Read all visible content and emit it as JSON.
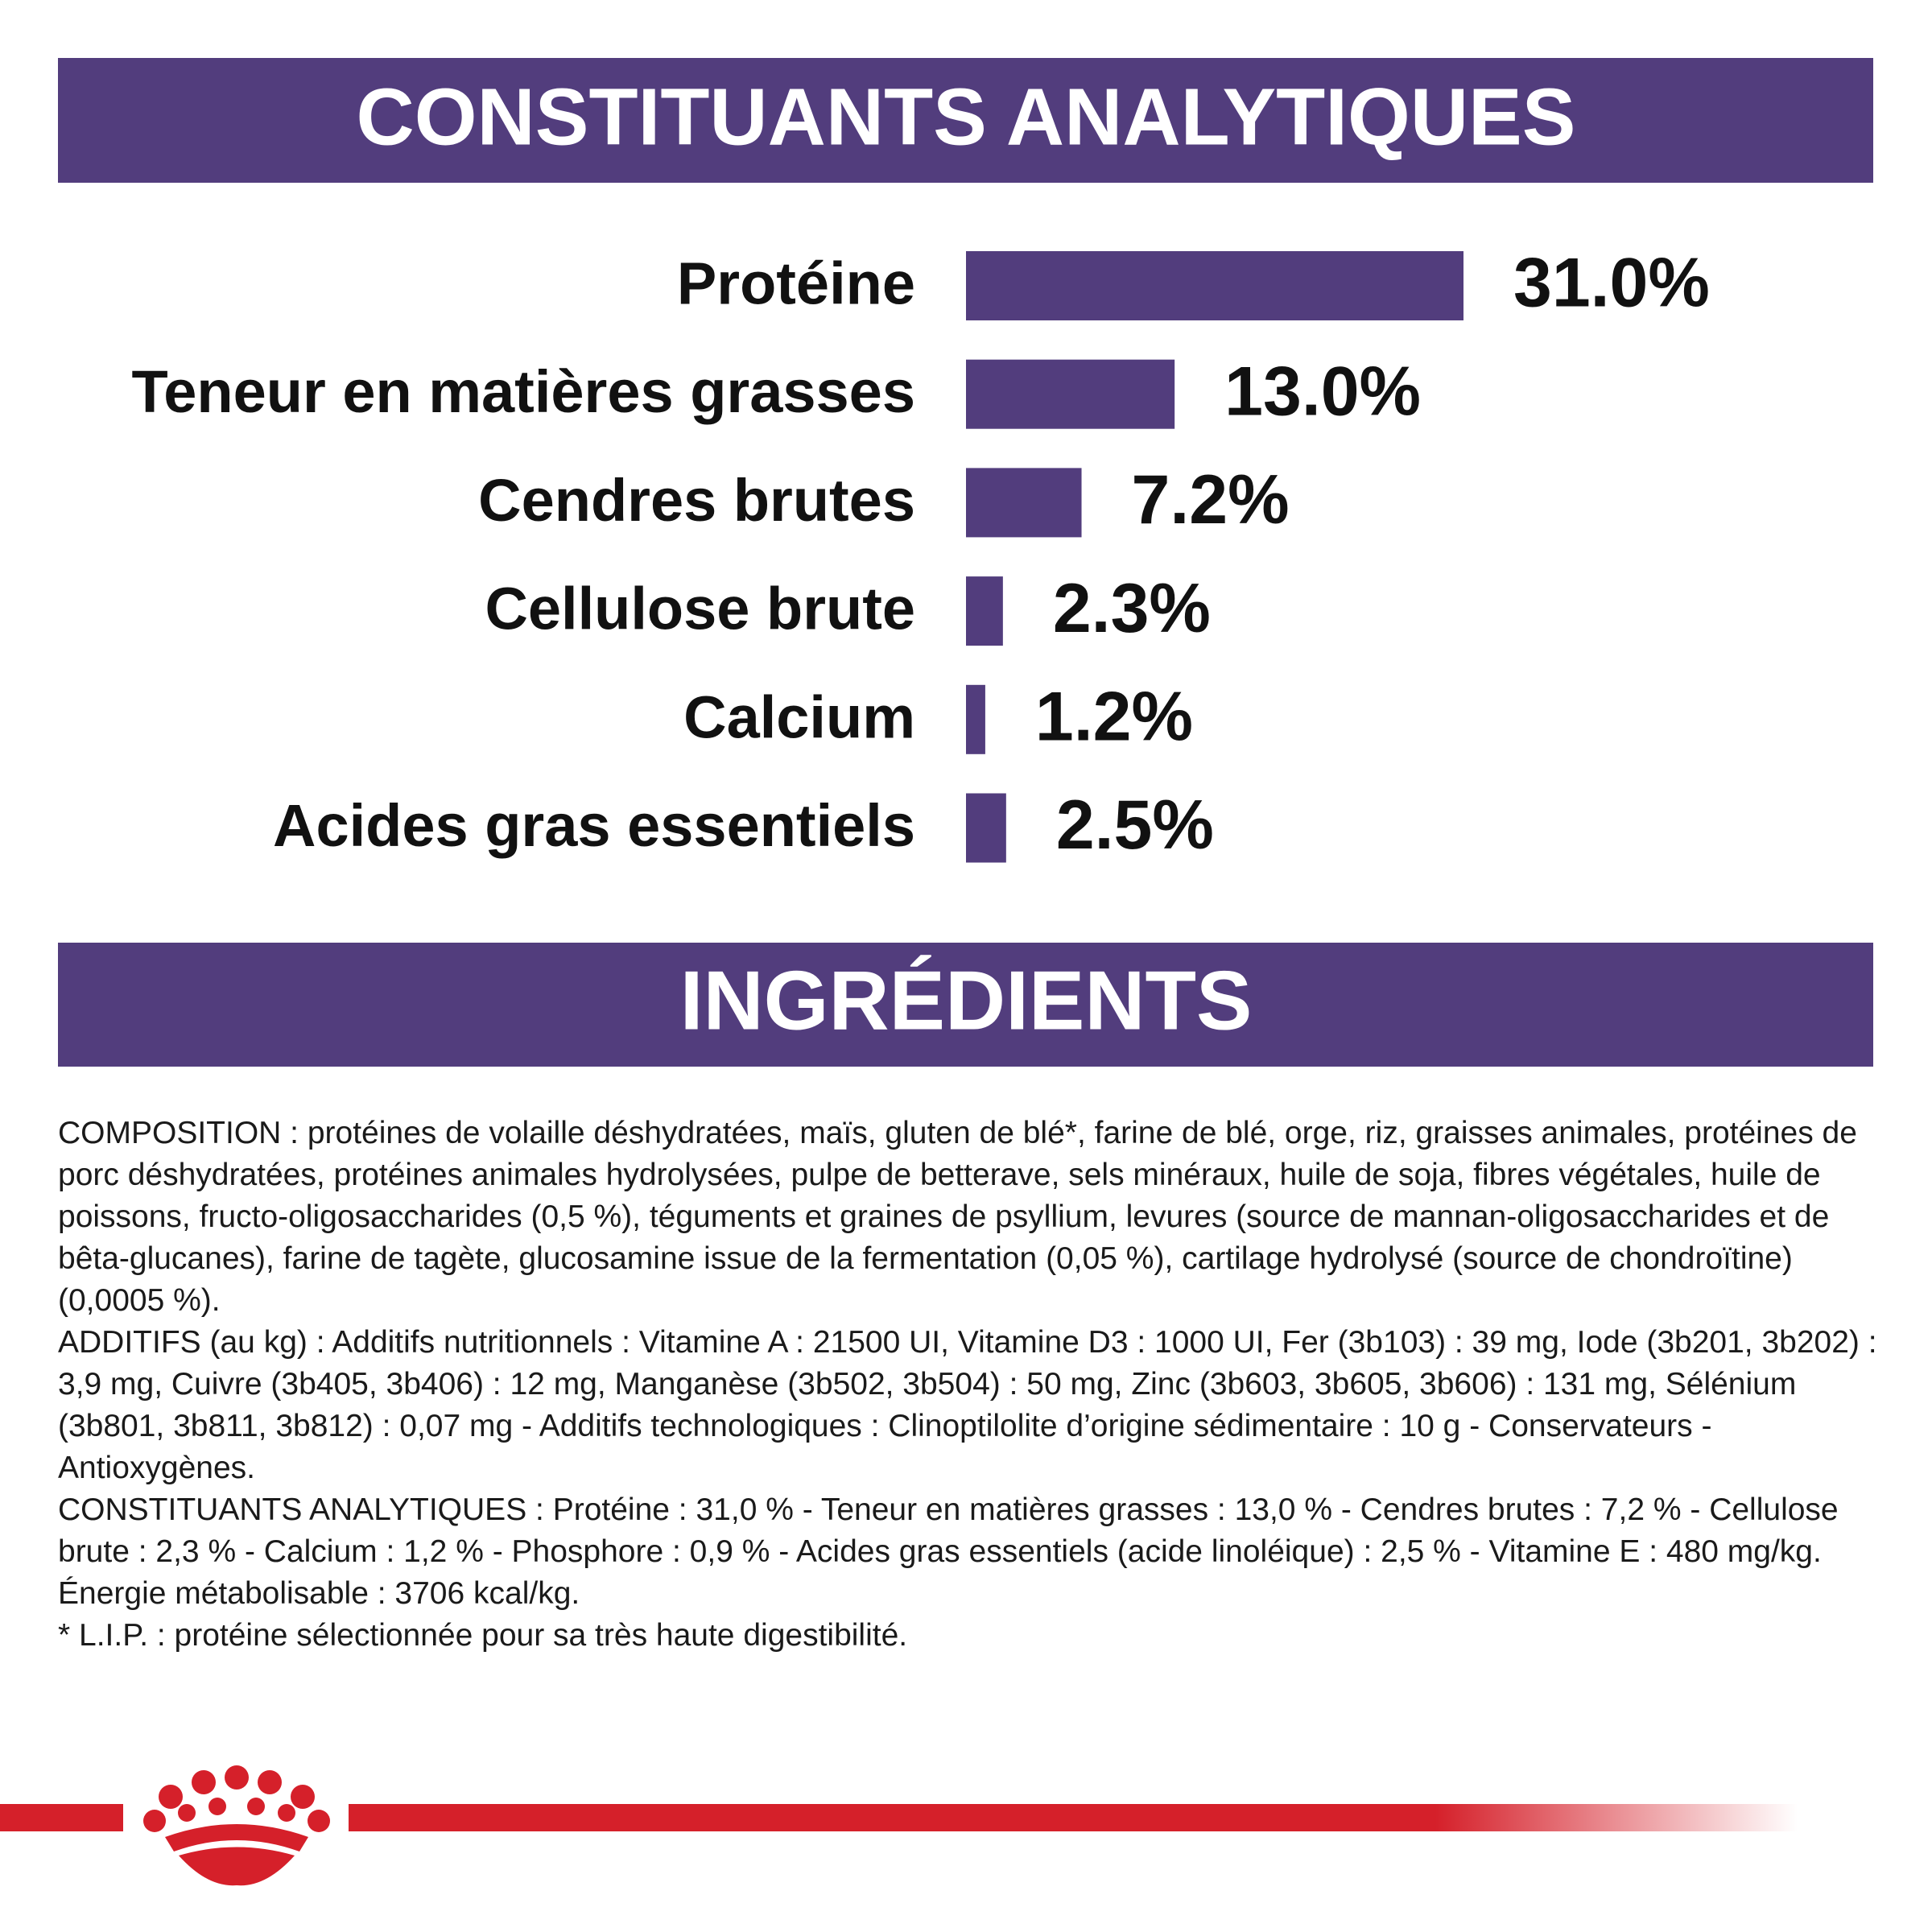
{
  "chart_data": {
    "type": "bar",
    "orientation": "horizontal",
    "title": "CONSTITUANTS ANALYTIQUES",
    "categories": [
      "Protéine",
      "Teneur en matières grasses",
      "Cendres brutes",
      "Cellulose brute",
      "Calcium",
      "Acides gras essentiels"
    ],
    "values": [
      31.0,
      13.0,
      7.2,
      2.3,
      1.2,
      2.5
    ],
    "value_labels": [
      "31.0%",
      "13.0%",
      "7.2%",
      "2.3%",
      "1.2%",
      "2.5%"
    ],
    "color": "#523d7d"
  },
  "ingredients": {
    "title": "INGRÉDIENTS",
    "paragraphs": [
      "COMPOSITION : protéines de volaille déshydratées, maïs, gluten de blé*, farine de blé, orge, riz, graisses animales, protéines de porc déshydratées, protéines animales hydrolysées, pulpe de betterave, sels minéraux, huile de soja, fibres végétales, huile de poissons, fructo-oligosaccharides (0,5 %), téguments et graines de psyllium, levures (source de mannan-oligosaccharides et de bêta-glucanes), farine de tagète, glucosamine issue de la fermentation (0,05 %), cartilage hydrolysé (source de chondroïtine) (0,0005 %).",
      "ADDITIFS (au kg) : Additifs nutritionnels : Vitamine A : 21500 UI, Vitamine D3 : 1000 UI, Fer (3b103) : 39 mg, Iode (3b201, 3b202) : 3,9 mg, Cuivre (3b405, 3b406) : 12 mg, Manganèse (3b502, 3b504) : 50 mg, Zinc (3b603, 3b605, 3b606) : 131 mg, Sélénium (3b801, 3b811, 3b812) : 0,07 mg - Additifs technologiques : Clinoptilolite d’origine sédimentaire : 10 g - Conservateurs - Antioxygènes.",
      "CONSTITUANTS ANALYTIQUES : Protéine : 31,0 % - Teneur en matières grasses : 13,0 % - Cendres brutes : 7,2 % - Cellulose brute : 2,3 % - Calcium : 1,2 % - Phosphore : 0,9 % - Acides gras essentiels (acide linoléique) : 2,5 % - Vitamine E : 480 mg/kg. Énergie métabolisable : 3706 kcal/kg.",
      "* L.I.P. : protéine sélectionnée pour sa très haute digestibilité."
    ]
  }
}
